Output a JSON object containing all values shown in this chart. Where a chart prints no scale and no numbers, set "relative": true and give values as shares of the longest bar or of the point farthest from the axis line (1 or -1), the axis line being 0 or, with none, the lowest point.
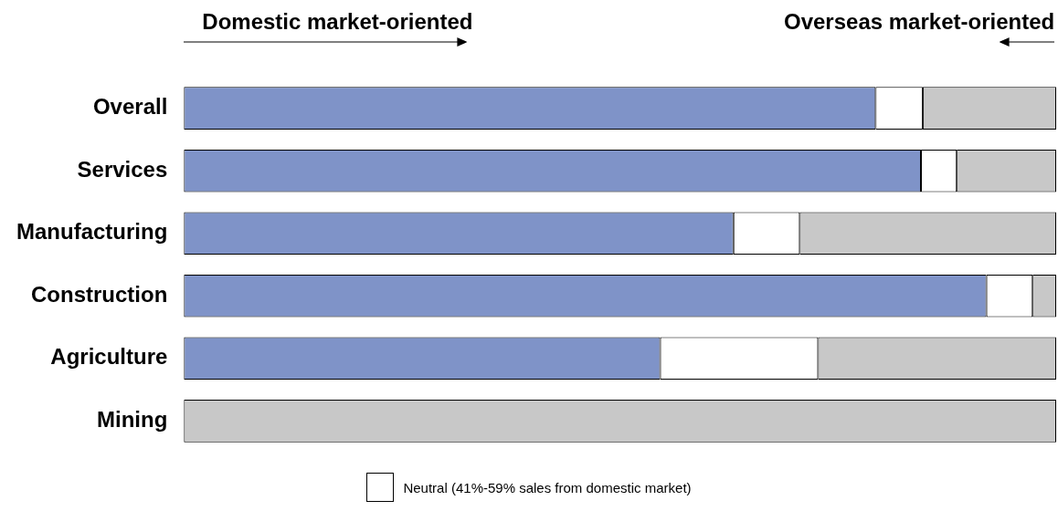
{
  "chart_data": {
    "type": "bar",
    "orientation": "horizontal",
    "stacked": true,
    "relative": true,
    "categories": [
      "Overall",
      "Services",
      "Manufacturing",
      "Construction",
      "Agriculture",
      "Mining"
    ],
    "series": [
      {
        "color": "#7f93c8",
        "values": [
          0.793,
          0.845,
          0.63,
          0.92,
          0.546,
          0
        ]
      },
      {
        "name": "Neutral (41%-59% sales from domestic market)",
        "color": "#ffffff",
        "values": [
          0.054,
          0.041,
          0.076,
          0.053,
          0.181,
          0
        ]
      },
      {
        "color": "#c8c8c8",
        "values": [
          0.153,
          0.114,
          0.294,
          0.027,
          0.273,
          1
        ]
      }
    ],
    "annotations": [
      "Domestic market-oriented",
      "Overseas market-oriented"
    ],
    "legend": "bottom"
  }
}
